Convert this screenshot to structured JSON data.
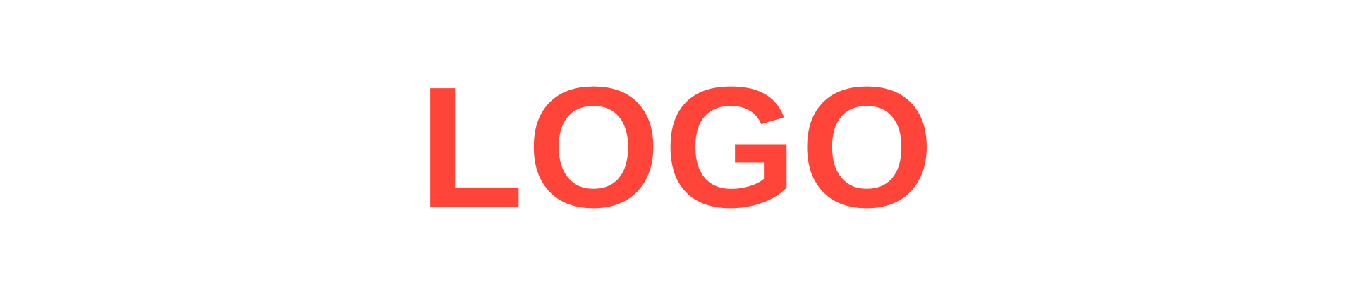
{
  "logo": {
    "text": "LOGO",
    "color": "#FF453A"
  },
  "background_color": "#FFFFFF"
}
